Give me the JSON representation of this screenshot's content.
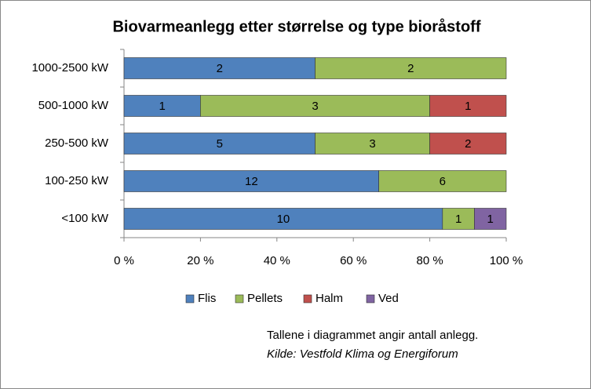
{
  "chart_data": {
    "type": "bar",
    "orientation": "horizontal",
    "stacking": "percent",
    "title": "Biovarmeanlegg etter størrelse og type bioråstoff",
    "categories": [
      "1000-2500 kW",
      "500-1000 kW",
      "250-500 kW",
      "100-250 kW",
      "<100 kW"
    ],
    "series": [
      {
        "name": "Flis",
        "color": "#4f81bd",
        "values": [
          2,
          1,
          5,
          12,
          10
        ]
      },
      {
        "name": "Pellets",
        "color": "#9bbb59",
        "values": [
          2,
          3,
          3,
          6,
          1
        ]
      },
      {
        "name": "Halm",
        "color": "#c0504d",
        "values": [
          null,
          1,
          2,
          null,
          null
        ]
      },
      {
        "name": "Ved",
        "color": "#8064a2",
        "values": [
          null,
          null,
          null,
          null,
          1
        ]
      }
    ],
    "xlim": [
      0,
      100
    ],
    "xticks": [
      {
        "value": 0,
        "label": "0 %"
      },
      {
        "value": 20,
        "label": "20 %"
      },
      {
        "value": 40,
        "label": "40 %"
      },
      {
        "value": 60,
        "label": "60 %"
      },
      {
        "value": 80,
        "label": "80 %"
      },
      {
        "value": 100,
        "label": "100 %"
      }
    ],
    "grid": false,
    "legend": "bottom",
    "annotations": [
      "Tallene i diagrammet angir antall anlegg.",
      "Kilde: Vestfold Klima og Energiforum"
    ]
  }
}
